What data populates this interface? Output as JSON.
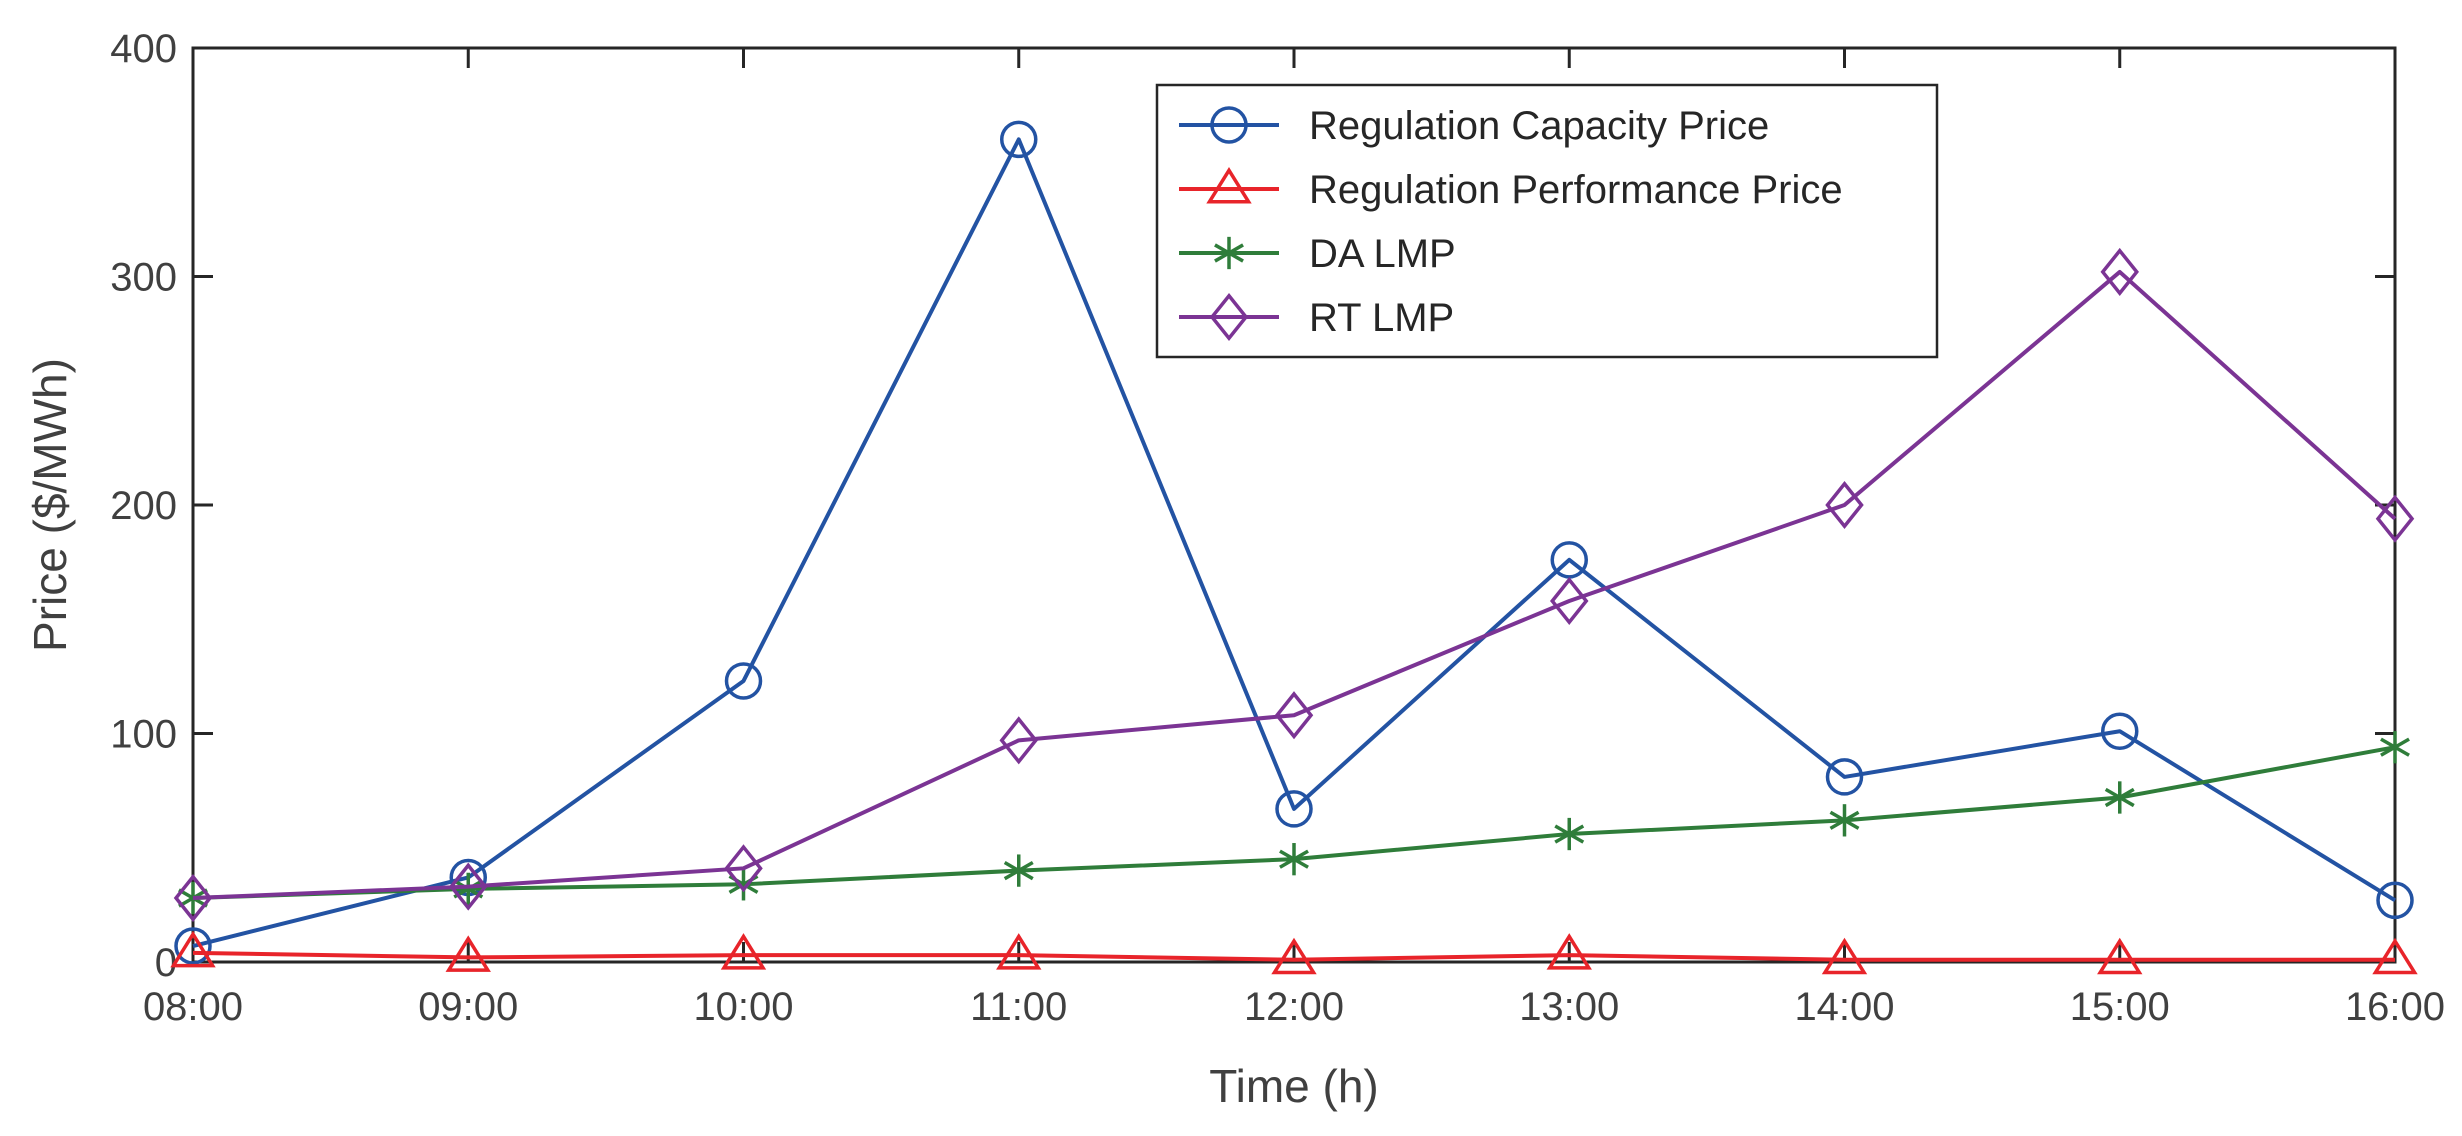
{
  "chart_data": {
    "type": "line",
    "title": "",
    "xlabel": "Time (h)",
    "ylabel": "Price ($/MWh)",
    "categories": [
      "08:00",
      "09:00",
      "10:00",
      "11:00",
      "12:00",
      "13:00",
      "14:00",
      "15:00",
      "16:00"
    ],
    "ylim": [
      0,
      400
    ],
    "yticks": [
      "0",
      "100",
      "200",
      "300",
      "400"
    ],
    "grid": false,
    "legend_position": "top-center",
    "series": [
      {
        "name": "Regulation Capacity Price",
        "color": "#2353a3",
        "marker": "circle",
        "values": [
          7,
          37,
          123,
          360,
          67,
          176,
          81,
          101,
          27
        ]
      },
      {
        "name": "Regulation Performance Price",
        "color": "#e8242a",
        "marker": "triangle",
        "values": [
          4,
          2,
          3,
          3,
          1,
          3,
          1,
          1,
          1
        ]
      },
      {
        "name": "DA LMP",
        "color": "#2f7d3a",
        "marker": "asterisk",
        "values": [
          28,
          32,
          34,
          40,
          45,
          56,
          62,
          72,
          94
        ]
      },
      {
        "name": "RT LMP",
        "color": "#7b3494",
        "marker": "diamond",
        "values": [
          28,
          33,
          41,
          97,
          108,
          158,
          200,
          302,
          194
        ]
      }
    ]
  }
}
